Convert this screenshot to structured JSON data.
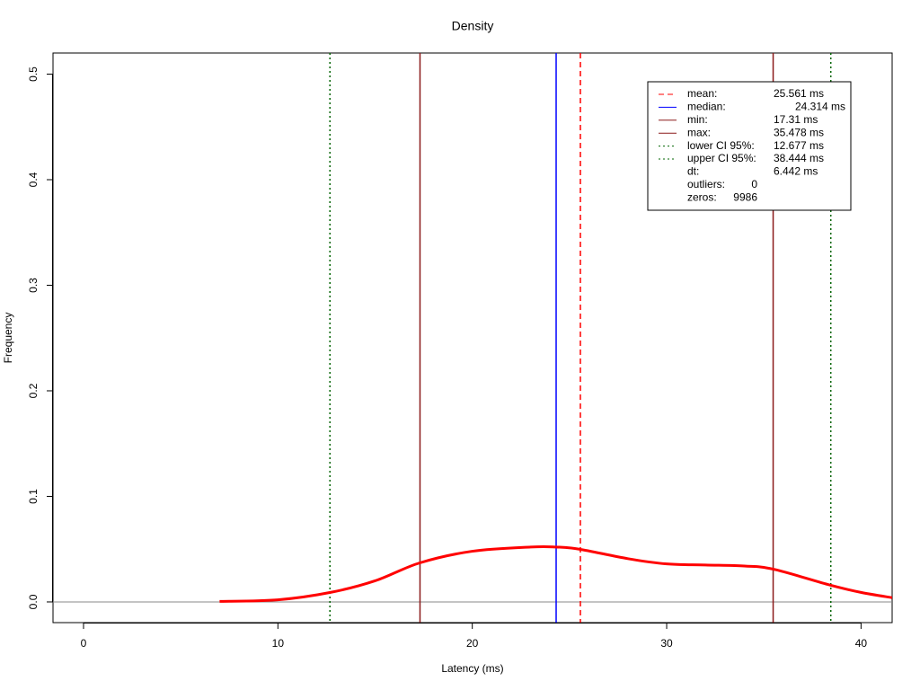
{
  "chart_data": {
    "type": "density",
    "title": "Density",
    "x_label": "Latency (ms)",
    "y_label": "Frequency",
    "xlim": [
      -1.57,
      41.6
    ],
    "ylim": [
      -0.0196,
      0.52
    ],
    "xticks": [
      0,
      10,
      20,
      30,
      40
    ],
    "yticks": [
      {
        "value": 0,
        "label": "0.0"
      },
      0.1,
      0.2,
      0.3,
      0.4,
      0.5
    ],
    "grid": false,
    "series": [
      {
        "color": "#ff0000",
        "x": [
          7,
          10,
          12.7,
          15,
          17.3,
          20,
          23,
          24.3,
          25.5,
          28,
          30,
          32,
          34,
          35.5,
          38.4,
          40,
          41.6
        ],
        "values": [
          0.0005,
          0.002,
          0.009,
          0.02,
          0.037,
          0.048,
          0.052,
          0.052,
          0.05,
          0.041,
          0.036,
          0.035,
          0.034,
          0.031,
          0.016,
          0.009,
          0.004
        ]
      }
    ],
    "lines": [
      {
        "name": "mean:",
        "value": 25.561,
        "label": "25.561 ms",
        "color": "#ff0000",
        "style": "dashed"
      },
      {
        "name": "median:",
        "value": 24.314,
        "label": "24.314 ms",
        "color": "#0000ff",
        "style": "solid"
      },
      {
        "name": "min:",
        "value": 17.31,
        "label": "17.31 ms",
        "color": "#8b1a1a",
        "style": "solid"
      },
      {
        "name": "max:",
        "value": 35.478,
        "label": "35.478 ms",
        "color": "#8b1a1a",
        "style": "solid"
      },
      {
        "name": "lower CI 95%:",
        "value": 12.677,
        "label": "12.677 ms",
        "color": "#006400",
        "style": "dotted"
      },
      {
        "name": "upper CI 95%:",
        "value": 38.444,
        "label": "38.444 ms",
        "color": "#006400",
        "style": "dotted"
      }
    ],
    "stats": [
      {
        "name": "dt:",
        "label": "6.442 ms"
      },
      {
        "name": "outliers:",
        "value": 0
      },
      {
        "name": "zeros:",
        "value": 9986
      }
    ],
    "legend_position": "top-right"
  }
}
